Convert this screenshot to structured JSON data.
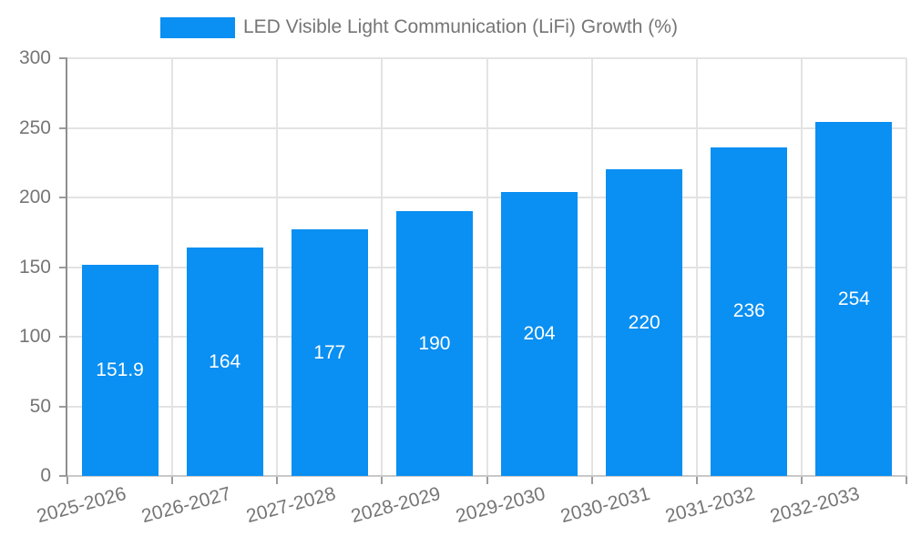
{
  "legend": {
    "label": "LED Visible Light Communication (LiFi) Growth (%)"
  },
  "colors": {
    "bar": "#0a8ff2",
    "grid": "#e3e3e3",
    "y_axis_line": "#8f8f8f",
    "x_axis_line": "#c8c8c8",
    "tick_mark": "#9c9c9c",
    "tick_text": "#757575",
    "value_label_text": "#ffffff",
    "background": "#ffffff"
  },
  "chart_data": {
    "type": "bar",
    "title": "",
    "legend_entries": [
      "LED Visible Light Communication (LiFi) Growth (%)"
    ],
    "legend_position": "top",
    "categories": [
      "2025-2026",
      "2026-2027",
      "2027-2028",
      "2028-2029",
      "2029-2030",
      "2030-2031",
      "2031-2032",
      "2032-2033"
    ],
    "series": [
      {
        "name": "LED Visible Light Communication (LiFi) Growth (%)",
        "values": [
          151.9,
          164,
          177,
          190,
          204,
          220,
          236,
          254
        ]
      }
    ],
    "value_labels": [
      "151.9",
      "164",
      "177",
      "190",
      "204",
      "220",
      "236",
      "254"
    ],
    "xlabel": "",
    "ylabel": "",
    "ylim": [
      0,
      300
    ],
    "yticks": [
      0,
      50,
      100,
      150,
      200,
      250,
      300
    ],
    "grid": true
  }
}
